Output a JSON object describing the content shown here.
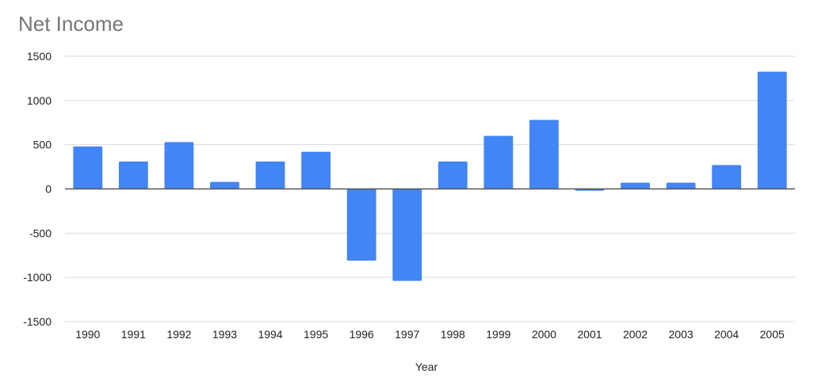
{
  "chart_data": {
    "type": "bar",
    "title": "Net Income",
    "xlabel": "Year",
    "ylabel": "",
    "categories": [
      "1990",
      "1991",
      "1992",
      "1993",
      "1994",
      "1995",
      "1996",
      "1997",
      "1998",
      "1999",
      "2000",
      "2001",
      "2002",
      "2003",
      "2004",
      "2005"
    ],
    "values": [
      480,
      310,
      530,
      80,
      310,
      420,
      -810,
      -1040,
      310,
      600,
      780,
      -20,
      70,
      70,
      270,
      1325
    ],
    "ylim": [
      -1500,
      1500
    ],
    "yticks": [
      1500,
      1000,
      500,
      0,
      -500,
      -1000,
      -1500
    ],
    "grid": true,
    "legend": "none"
  },
  "colors": {
    "bar": "#4285f4",
    "grid": "#d9d9d9",
    "zero_line": "#555555",
    "title": "#757575"
  }
}
